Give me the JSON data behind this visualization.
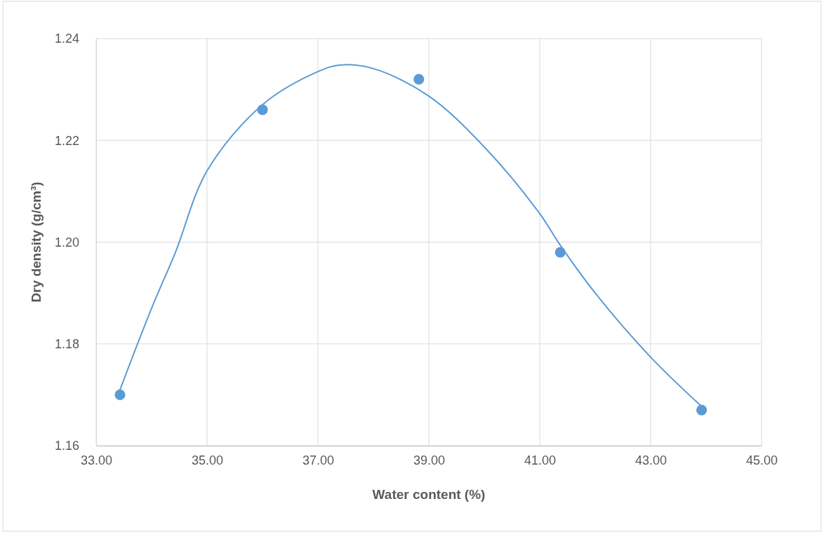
{
  "chart_data": {
    "type": "scatter",
    "xlabel": "Water content (%)",
    "ylabel": "Dry density  (g/cm³)",
    "xlim": [
      33,
      45
    ],
    "xticks": [
      {
        "value": 33,
        "label": "33.00"
      },
      {
        "value": 35,
        "label": "35.00"
      },
      {
        "value": 37,
        "label": "37.00"
      },
      {
        "value": 39,
        "label": "39.00"
      },
      {
        "value": 41,
        "label": "41.00"
      },
      {
        "value": 43,
        "label": "43.00"
      },
      {
        "value": 45,
        "label": "45.00"
      }
    ],
    "ylim": [
      1.16,
      1.24
    ],
    "yticks": [
      {
        "value": 1.16,
        "label": "1.16"
      },
      {
        "value": 1.18,
        "label": "1.18"
      },
      {
        "value": 1.2,
        "label": "1.20"
      },
      {
        "value": 1.22,
        "label": "1.22"
      },
      {
        "value": 1.24,
        "label": "1.24"
      }
    ],
    "grid": true,
    "series": [
      {
        "color": "#5b9bd5",
        "marker": "circle",
        "x": [
          33.43,
          36.0,
          38.82,
          41.37,
          43.92
        ],
        "values": [
          1.17,
          1.226,
          1.232,
          1.198,
          1.167
        ]
      },
      {
        "type": "line",
        "color": "#5b9bd5",
        "x": [
          33.43,
          34.0,
          34.43,
          35.0,
          36.0,
          37.0,
          37.4,
          38.0,
          39.0,
          40.0,
          41.0,
          41.37,
          42.0,
          43.0,
          43.92
        ],
        "values": [
          1.171,
          1.187,
          1.198,
          1.214,
          1.227,
          1.2335,
          1.2348,
          1.2341,
          1.2287,
          1.2187,
          1.2056,
          1.1994,
          1.19,
          1.1774,
          1.1677
        ]
      }
    ]
  }
}
